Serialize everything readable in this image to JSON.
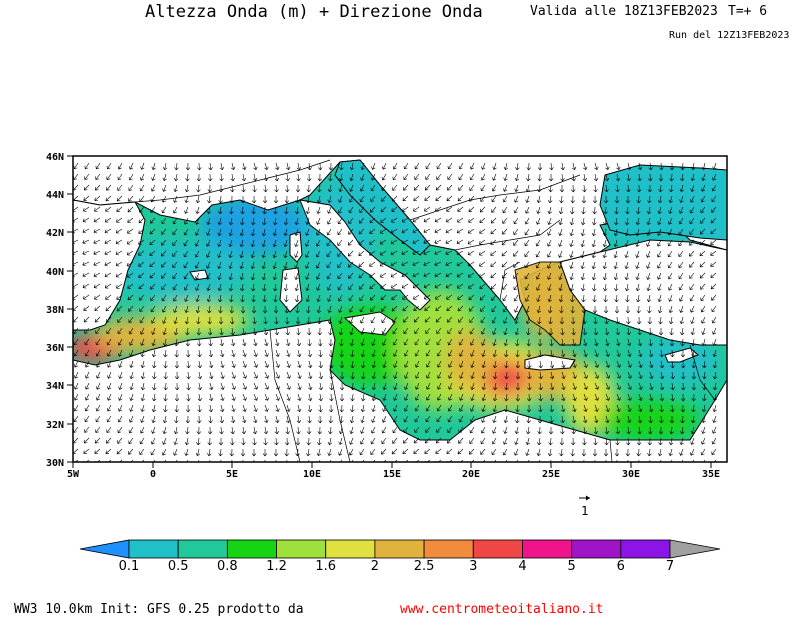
{
  "header": {
    "title": "Altezza Onda (m) + Direzione Onda",
    "valid": "Valida alle 18Z13FEB2023",
    "timestep": "T=+ 6",
    "run": "Run del 12Z13FEB2023"
  },
  "map": {
    "lat_labels": [
      "46N",
      "44N",
      "42N",
      "40N",
      "38N",
      "36N",
      "34N",
      "32N",
      "30N"
    ],
    "lon_labels": [
      "5W",
      "0",
      "5E",
      "10E",
      "15E",
      "20E",
      "25E",
      "30E",
      "35E"
    ],
    "extent": {
      "lon": [
        -5,
        36
      ],
      "lat": [
        30,
        46
      ]
    },
    "reference_vector_label": "1",
    "colors": {
      "land": "#ffffff",
      "coast": "#000000",
      "arrow": "#000000"
    }
  },
  "colorbar": {
    "ticks": [
      "0.1",
      "0.5",
      "0.8",
      "1.2",
      "1.6",
      "2",
      "2.5",
      "3",
      "4",
      "5",
      "6",
      "7"
    ],
    "colors": [
      "#1e90ff",
      "#20c0c8",
      "#20c89a",
      "#14d414",
      "#a0e03c",
      "#e0e040",
      "#e0b43c",
      "#f08c3c",
      "#f04646",
      "#f0148c",
      "#a014c8",
      "#8c14e6",
      "#a0a0a0"
    ]
  },
  "footer": {
    "model_text": "WW3 10.0km Init: GFS 0.25 prodotto da",
    "url": "www.centrometeoitaliano.it"
  }
}
